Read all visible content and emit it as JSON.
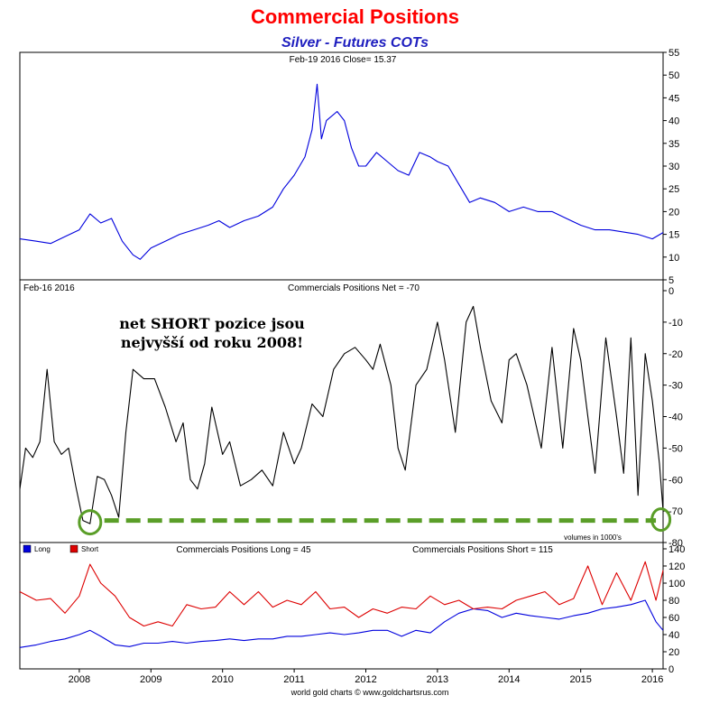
{
  "title": "Commercial Positions",
  "subtitle": "Silver - Futures COTs",
  "footer": "world gold charts © www.goldchartsrus.com",
  "colors": {
    "title": "#ff0000",
    "subtitle": "#1f1fbf",
    "price": "#0000dd",
    "net": "#000000",
    "long": "#0000dd",
    "short": "#dd0000",
    "highlight": "#5a9e28"
  },
  "chart_data": [
    {
      "type": "line",
      "name": "price-panel",
      "header": "Feb-19 2016   Close= 15.37",
      "ylim": [
        5,
        55
      ],
      "yticks": [
        "5",
        "10",
        "15",
        "20",
        "25",
        "30",
        "35",
        "40",
        "45",
        "50",
        "55"
      ],
      "xlim": [
        2007.17,
        2016.15
      ],
      "series": [
        {
          "color": "#0000dd",
          "x": [
            2007.17,
            2007.4,
            2007.6,
            2007.8,
            2008.0,
            2008.15,
            2008.3,
            2008.45,
            2008.6,
            2008.75,
            2008.85,
            2009.0,
            2009.2,
            2009.4,
            2009.6,
            2009.8,
            2009.95,
            2010.1,
            2010.3,
            2010.5,
            2010.7,
            2010.85,
            2011.0,
            2011.15,
            2011.25,
            2011.32,
            2011.38,
            2011.45,
            2011.6,
            2011.7,
            2011.8,
            2011.9,
            2012.0,
            2012.15,
            2012.3,
            2012.45,
            2012.6,
            2012.75,
            2012.9,
            2013.0,
            2013.15,
            2013.3,
            2013.45,
            2013.6,
            2013.8,
            2014.0,
            2014.2,
            2014.4,
            2014.6,
            2014.8,
            2015.0,
            2015.2,
            2015.4,
            2015.6,
            2015.8,
            2016.0,
            2016.15
          ],
          "y": [
            14,
            13.5,
            13,
            14.5,
            16,
            19.5,
            17.5,
            18.5,
            13.5,
            10.5,
            9.5,
            12,
            13.5,
            15,
            16,
            17,
            18,
            16.5,
            18,
            19,
            21,
            25,
            28,
            32,
            38,
            48,
            36,
            40,
            42,
            40,
            34,
            30,
            30,
            33,
            31,
            29,
            28,
            33,
            32,
            31,
            30,
            26,
            22,
            23,
            22,
            20,
            21,
            20,
            20,
            18.5,
            17,
            16,
            16,
            15.5,
            15,
            14,
            15.4
          ]
        }
      ]
    },
    {
      "type": "line",
      "name": "net-panel",
      "header_left": "Feb-16 2016",
      "header": "Commercials Positions Net = -70",
      "ylim": [
        -80,
        0
      ],
      "yticks": [
        "0",
        "-10",
        "-20",
        "-30",
        "-40",
        "-50",
        "-60",
        "-70",
        "-80"
      ],
      "xlim": [
        2007.17,
        2016.15
      ],
      "series": [
        {
          "color": "#000000",
          "x": [
            2007.17,
            2007.25,
            2007.35,
            2007.45,
            2007.55,
            2007.65,
            2007.75,
            2007.85,
            2007.95,
            2008.05,
            2008.15,
            2008.25,
            2008.35,
            2008.45,
            2008.55,
            2008.65,
            2008.75,
            2008.9,
            2009.05,
            2009.2,
            2009.35,
            2009.45,
            2009.55,
            2009.65,
            2009.75,
            2009.85,
            2010.0,
            2010.1,
            2010.25,
            2010.4,
            2010.55,
            2010.7,
            2010.85,
            2011.0,
            2011.1,
            2011.25,
            2011.4,
            2011.55,
            2011.7,
            2011.85,
            2012.0,
            2012.1,
            2012.2,
            2012.35,
            2012.45,
            2012.55,
            2012.7,
            2012.85,
            2013.0,
            2013.1,
            2013.25,
            2013.4,
            2013.5,
            2013.6,
            2013.75,
            2013.9,
            2014.0,
            2014.1,
            2014.25,
            2014.45,
            2014.6,
            2014.75,
            2014.9,
            2015.0,
            2015.1,
            2015.2,
            2015.35,
            2015.5,
            2015.6,
            2015.7,
            2015.8,
            2015.9,
            2016.0,
            2016.1,
            2016.15
          ],
          "y": [
            -63,
            -50,
            -53,
            -48,
            -25,
            -48,
            -52,
            -50,
            -62,
            -73,
            -74,
            -59,
            -60,
            -65,
            -72,
            -45,
            -25,
            -28,
            -28,
            -37,
            -48,
            -42,
            -60,
            -63,
            -55,
            -37,
            -52,
            -48,
            -62,
            -60,
            -57,
            -62,
            -45,
            -55,
            -50,
            -36,
            -40,
            -25,
            -20,
            -18,
            -22,
            -25,
            -17,
            -30,
            -50,
            -57,
            -30,
            -25,
            -10,
            -22,
            -45,
            -10,
            -5,
            -18,
            -35,
            -42,
            -22,
            -20,
            -30,
            -50,
            -18,
            -50,
            -12,
            -22,
            -40,
            -58,
            -15,
            -40,
            -58,
            -15,
            -65,
            -20,
            -35,
            -55,
            -70
          ]
        }
      ],
      "annotation_lines": [
        "net SHORT pozice jsou",
        "nejvyšší od roku 2008!"
      ],
      "note": "volumes in 1000's"
    },
    {
      "type": "line",
      "name": "long-short-panel",
      "header_long": "Commercials Positions Long = 45",
      "header_short": "Commercials Positions Short = 115",
      "ylim": [
        0,
        140
      ],
      "yticks": [
        "0",
        "20",
        "40",
        "60",
        "80",
        "100",
        "120",
        "140"
      ],
      "xlim": [
        2007.17,
        2016.15
      ],
      "xticks": [
        "2008",
        "2009",
        "2010",
        "2011",
        "2012",
        "2013",
        "2014",
        "2015",
        "2016"
      ],
      "series": [
        {
          "name": "Long",
          "color": "#0000dd",
          "x": [
            2007.17,
            2007.4,
            2007.6,
            2007.8,
            2008.0,
            2008.15,
            2008.3,
            2008.5,
            2008.7,
            2008.9,
            2009.1,
            2009.3,
            2009.5,
            2009.7,
            2009.9,
            2010.1,
            2010.3,
            2010.5,
            2010.7,
            2010.9,
            2011.1,
            2011.3,
            2011.5,
            2011.7,
            2011.9,
            2012.1,
            2012.3,
            2012.5,
            2012.7,
            2012.9,
            2013.1,
            2013.3,
            2013.5,
            2013.7,
            2013.9,
            2014.1,
            2014.3,
            2014.5,
            2014.7,
            2014.9,
            2015.1,
            2015.3,
            2015.5,
            2015.7,
            2015.9,
            2016.05,
            2016.15
          ],
          "y": [
            25,
            28,
            32,
            35,
            40,
            45,
            38,
            28,
            26,
            30,
            30,
            32,
            30,
            32,
            33,
            35,
            33,
            35,
            35,
            38,
            38,
            40,
            42,
            40,
            42,
            45,
            45,
            38,
            45,
            42,
            55,
            65,
            70,
            68,
            60,
            65,
            62,
            60,
            58,
            62,
            65,
            70,
            72,
            75,
            80,
            55,
            45
          ]
        },
        {
          "name": "Short",
          "color": "#dd0000",
          "x": [
            2007.17,
            2007.4,
            2007.6,
            2007.8,
            2008.0,
            2008.15,
            2008.3,
            2008.5,
            2008.7,
            2008.9,
            2009.1,
            2009.3,
            2009.5,
            2009.7,
            2009.9,
            2010.1,
            2010.3,
            2010.5,
            2010.7,
            2010.9,
            2011.1,
            2011.3,
            2011.5,
            2011.7,
            2011.9,
            2012.1,
            2012.3,
            2012.5,
            2012.7,
            2012.9,
            2013.1,
            2013.3,
            2013.5,
            2013.7,
            2013.9,
            2014.1,
            2014.3,
            2014.5,
            2014.7,
            2014.9,
            2015.1,
            2015.3,
            2015.5,
            2015.7,
            2015.9,
            2016.05,
            2016.15
          ],
          "y": [
            90,
            80,
            82,
            65,
            85,
            122,
            100,
            85,
            60,
            50,
            55,
            50,
            75,
            70,
            72,
            90,
            75,
            90,
            72,
            80,
            75,
            90,
            70,
            72,
            60,
            70,
            65,
            72,
            70,
            85,
            75,
            80,
            70,
            72,
            70,
            80,
            85,
            90,
            75,
            82,
            120,
            75,
            112,
            80,
            125,
            80,
            115
          ]
        }
      ]
    }
  ]
}
